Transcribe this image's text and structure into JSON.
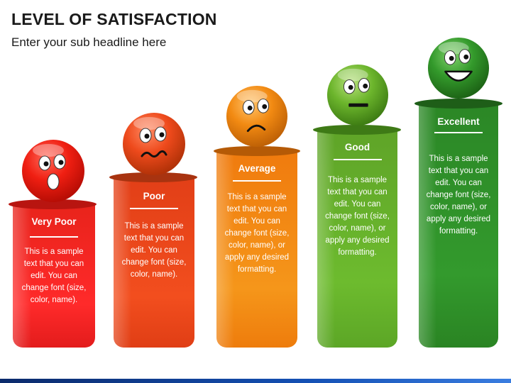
{
  "header": {
    "title": "LEVEL OF SATISFACTION",
    "subtitle": "Enter your sub headline here"
  },
  "levels": [
    {
      "label": "Very Poor",
      "text": "This is a sample text that you can edit. You can change font (size, color, name).",
      "color": "#e3211a",
      "face": "shocked"
    },
    {
      "label": "Poor",
      "text": "This is a sample text that you can edit. You can change font (size, color, name).",
      "color": "#e34e1b",
      "face": "worried"
    },
    {
      "label": "Average",
      "text": "This is a sample text that you can edit. You can change font (size, color, name), or apply any desired formatting.",
      "color": "#f08a12",
      "face": "sad"
    },
    {
      "label": "Good",
      "text": "This is a sample text that you can edit. You can change font (size, color, name), or apply any desired formatting.",
      "color": "#6cb52c",
      "face": "neutral"
    },
    {
      "label": "Excellent",
      "text": "This is a sample text that you can edit. You can change font (size, color, name), or apply any desired formatting.",
      "color": "#2f8f2a",
      "face": "happy"
    }
  ]
}
